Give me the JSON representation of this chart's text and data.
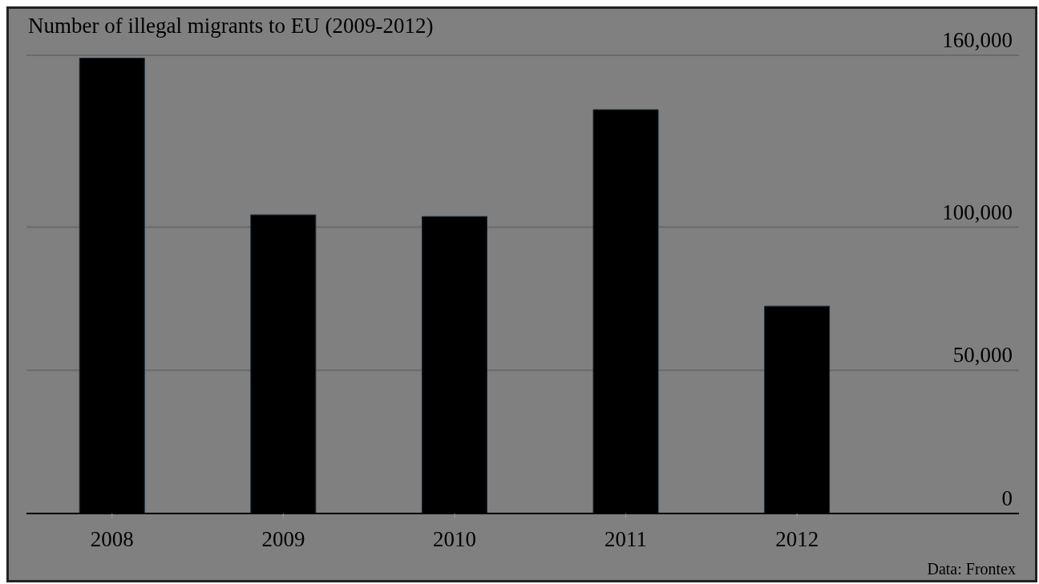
{
  "chart_data": {
    "type": "bar",
    "title": "Number of illegal migrants to EU (2009-2012)",
    "categories": [
      "2008",
      "2009",
      "2010",
      "2011",
      "2012"
    ],
    "values": [
      159000,
      104300,
      103700,
      141000,
      72400
    ],
    "color": "#000000",
    "ylim": [
      0,
      160000
    ],
    "yticks": [
      0,
      {
        "value": 50000,
        "label": "50,000"
      },
      {
        "value": 100000,
        "label": "100,000"
      },
      {
        "value": 160000,
        "label": "160,000"
      }
    ],
    "grid": "y",
    "annotations": [
      "Data: Frontex"
    ]
  }
}
